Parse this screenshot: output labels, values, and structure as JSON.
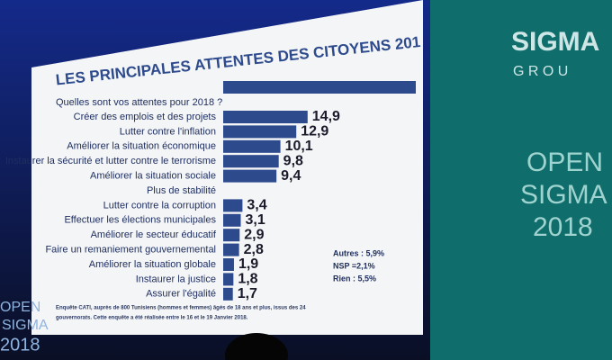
{
  "chart_data": {
    "type": "hbar",
    "title": "LES PRINCIPALES ATTENTES DES CITOYENS 201",
    "subtitle": "Quelles sont vos attentes pour 2018 ?",
    "categories": [
      null,
      "Créer des emplois et des projets",
      "Lutter contre l'inflation",
      "Améliorer la situation économique",
      "Instaurer la sécurité et lutter contre le terrorisme",
      "Améliorer la situation sociale",
      "Plus de stabilité",
      "Lutter contre la corruption",
      "Effectuer les élections municipales",
      "Améliorer le secteur éducatif",
      "Faire un remaniement gouvernemental",
      "Améliorer la situation globale",
      "Instaurer la justice",
      "Assurer l'égalité"
    ],
    "values": [
      34,
      14.9,
      12.9,
      10.1,
      9.8,
      9.4,
      null,
      3.4,
      3.1,
      2.9,
      2.8,
      1.9,
      1.8,
      1.7
    ],
    "value_labels": [
      null,
      "14,9",
      "12,9",
      "10,1",
      "9,8",
      "9,4",
      null,
      "3,4",
      "3,1",
      "2,9",
      "2,8",
      "1,9",
      "1,8",
      "1,7"
    ],
    "color": "#2c4a8c",
    "notes": [
      "Autres : 5,9%",
      "NSP =2,1%",
      "Rien : 5,5%"
    ],
    "footnote": [
      "Enquête CATI, auprès de 800 Tunisiens (hommes et femmes) âgés de 18 ans et plus, issus des 24",
      "gouvernorats. Cette enquête a été réalisée entre le 16 et le 19 Janvier 2018."
    ]
  },
  "branding": {
    "logo": [
      "SIGMA",
      "G R O U"
    ],
    "panel": [
      "OPEN",
      "SIGMA",
      "2018"
    ],
    "corner": [
      "OPEN",
      "SIGMA",
      "2018"
    ]
  }
}
